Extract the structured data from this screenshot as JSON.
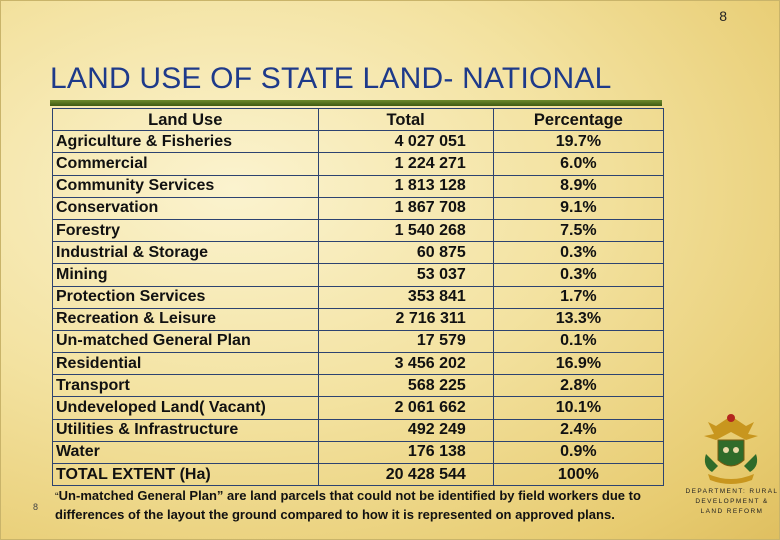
{
  "page_number_top": "8",
  "page_number_bottom": "8",
  "title": "LAND USE OF STATE LAND- NATIONAL",
  "table": {
    "headers": {
      "land_use": "Land Use",
      "total": "Total",
      "percentage": "Percentage"
    },
    "rows": [
      {
        "land_use": "Agriculture & Fisheries",
        "total": "4 027 051",
        "percentage": "19.7%"
      },
      {
        "land_use": "Commercial",
        "total": "1 224 271",
        "percentage": "6.0%"
      },
      {
        "land_use": "Community Services",
        "total": "1 813 128",
        "percentage": "8.9%"
      },
      {
        "land_use": "Conservation",
        "total": "1 867 708",
        "percentage": "9.1%"
      },
      {
        "land_use": "Forestry",
        "total": "1 540 268",
        "percentage": "7.5%"
      },
      {
        "land_use": "Industrial & Storage",
        "total": "60 875",
        "percentage": "0.3%"
      },
      {
        "land_use": "Mining",
        "total": "53 037",
        "percentage": "0.3%"
      },
      {
        "land_use": "Protection Services",
        "total": "353 841",
        "percentage": "1.7%"
      },
      {
        "land_use": "Recreation & Leisure",
        "total": "2 716 311",
        "percentage": "13.3%"
      },
      {
        "land_use": "Un-matched General Plan",
        "total": "17 579",
        "percentage": "0.1%"
      },
      {
        "land_use": "Residential",
        "total": "3 456 202",
        "percentage": "16.9%"
      },
      {
        "land_use": "Transport",
        "total": "568 225",
        "percentage": "2.8%"
      },
      {
        "land_use": "Undeveloped Land( Vacant)",
        "total": "2 061 662",
        "percentage": "10.1%"
      },
      {
        "land_use": "Utilities & Infrastructure",
        "total": "492 249",
        "percentage": "2.4%"
      },
      {
        "land_use": "Water",
        "total": "176 138",
        "percentage": "0.9%"
      },
      {
        "land_use": "TOTAL EXTENT (Ha)",
        "total": "20 428 544",
        "percentage": "100%"
      }
    ]
  },
  "footnote": {
    "open_quote": "“",
    "text": "Un-matched General Plan” are land parcels that could not be identified by field workers due to differences of the layout the ground compared to how it is represented on approved plans."
  },
  "department": {
    "logo_icon": "coat-of-arms-icon",
    "label": "DEPARTMENT: RURAL DEVELOPMENT & LAND REFORM",
    "colors": {
      "gold": "#c8961e",
      "green": "#2f6b2a",
      "red": "#b3261e"
    }
  }
}
